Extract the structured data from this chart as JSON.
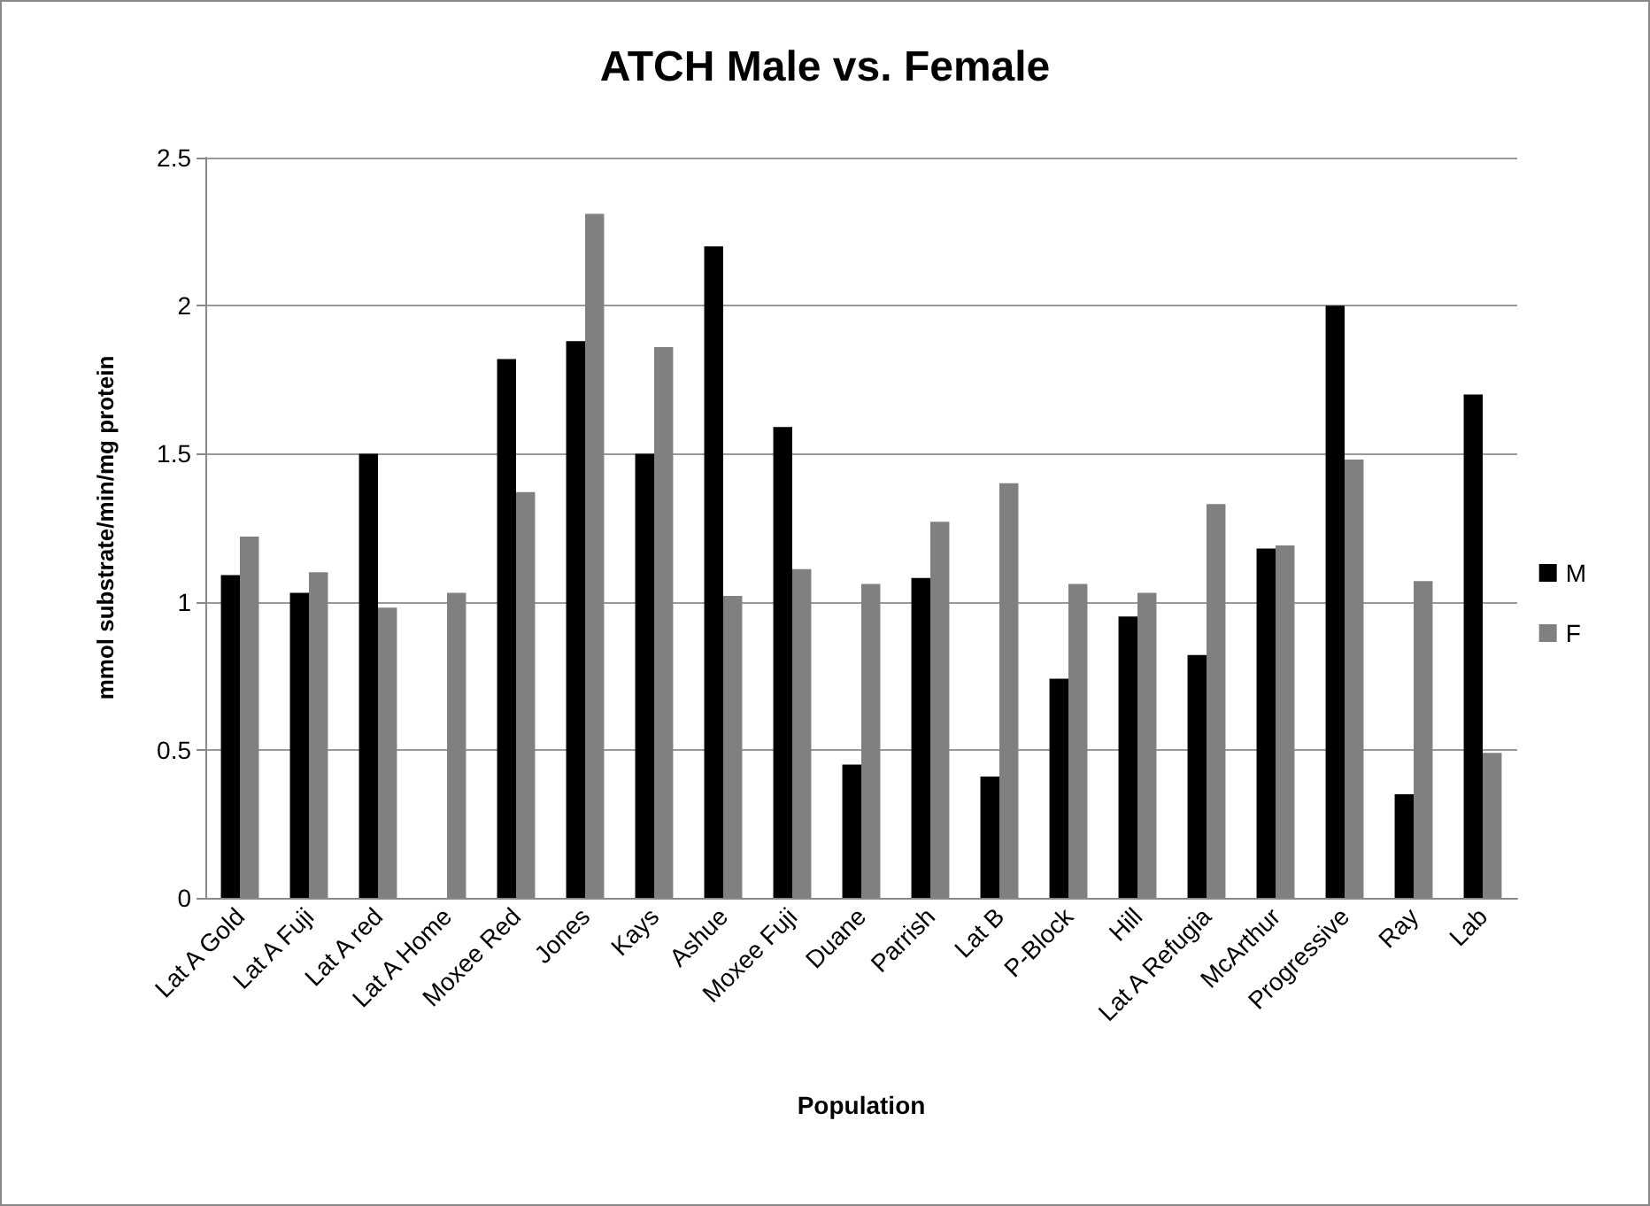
{
  "chart_data": {
    "type": "bar",
    "title": "ATCH Male vs. Female",
    "xlabel": "Population",
    "ylabel": "mmol substrate/min/mg protein",
    "categories": [
      "Lat A Gold",
      "Lat A Fuji",
      "Lat A red",
      "Lat A Home",
      "Moxee Red",
      "Jones",
      "Kays",
      "Ashue",
      "Moxee Fuji",
      "Duane",
      "Parrish",
      "Lat B",
      "P-Block",
      "Hill",
      "Lat A Refugia",
      "McArthur",
      "Progressive",
      "Ray",
      "Lab"
    ],
    "series": [
      {
        "name": "M",
        "color": "#000000",
        "values": [
          1.09,
          1.03,
          1.5,
          null,
          1.82,
          1.88,
          1.5,
          2.2,
          1.59,
          0.45,
          1.08,
          0.41,
          0.74,
          0.95,
          0.82,
          1.18,
          2.0,
          0.35,
          1.7
        ]
      },
      {
        "name": "F",
        "color": "#808080",
        "values": [
          1.22,
          1.1,
          0.98,
          1.03,
          1.37,
          2.31,
          1.86,
          1.02,
          1.11,
          1.06,
          1.27,
          1.4,
          1.06,
          1.03,
          1.33,
          1.19,
          1.48,
          1.07,
          0.49
        ]
      }
    ],
    "ylim": [
      0,
      2.5
    ],
    "yticks": [
      0,
      0.5,
      1,
      1.5,
      2,
      2.5
    ],
    "grid": "y",
    "legend": "right"
  }
}
